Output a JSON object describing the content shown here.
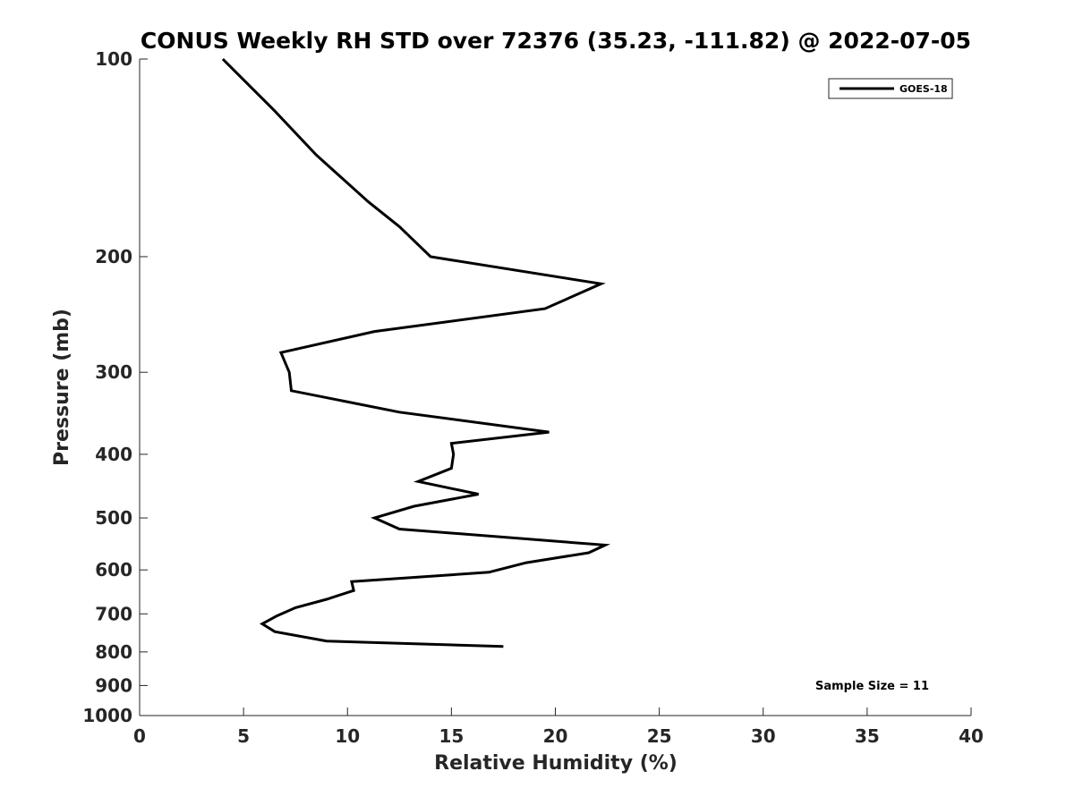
{
  "chart_data": {
    "type": "line",
    "title": "CONUS Weekly RH STD over 72376 (35.23, -111.82) @ 2022-07-05",
    "xlabel": "Relative Humidity (%)",
    "ylabel": "Pressure (mb)",
    "xlim": [
      0,
      40
    ],
    "ylim": [
      100,
      1000
    ],
    "y_scale": "log",
    "y_reversed": true,
    "x_ticks": [
      0,
      5,
      10,
      15,
      20,
      25,
      30,
      35,
      40
    ],
    "y_ticks": [
      100,
      200,
      300,
      400,
      500,
      600,
      700,
      800,
      900,
      1000
    ],
    "grid": false,
    "legend_position": "top-right",
    "line_color": "#000000",
    "series": [
      {
        "name": "GOES-18",
        "points": [
          [
            4.0,
            100
          ],
          [
            6.5,
            120
          ],
          [
            8.5,
            140
          ],
          [
            11.0,
            165
          ],
          [
            12.5,
            180
          ],
          [
            14.0,
            200
          ],
          [
            22.2,
            220
          ],
          [
            19.5,
            240
          ],
          [
            11.3,
            260
          ],
          [
            6.8,
            280
          ],
          [
            7.2,
            300
          ],
          [
            7.3,
            320
          ],
          [
            12.5,
            345
          ],
          [
            19.7,
            370
          ],
          [
            15.0,
            385
          ],
          [
            15.1,
            400
          ],
          [
            15.0,
            420
          ],
          [
            13.4,
            440
          ],
          [
            16.3,
            460
          ],
          [
            13.2,
            480
          ],
          [
            11.3,
            500
          ],
          [
            12.5,
            520
          ],
          [
            22.4,
            550
          ],
          [
            21.6,
            565
          ],
          [
            18.6,
            585
          ],
          [
            16.8,
            605
          ],
          [
            10.2,
            625
          ],
          [
            10.3,
            645
          ],
          [
            9.0,
            665
          ],
          [
            7.5,
            685
          ],
          [
            6.6,
            705
          ],
          [
            5.9,
            725
          ],
          [
            6.5,
            745
          ],
          [
            9.0,
            770
          ],
          [
            17.5,
            785
          ]
        ]
      }
    ],
    "annotation": "Sample Size = 11"
  }
}
